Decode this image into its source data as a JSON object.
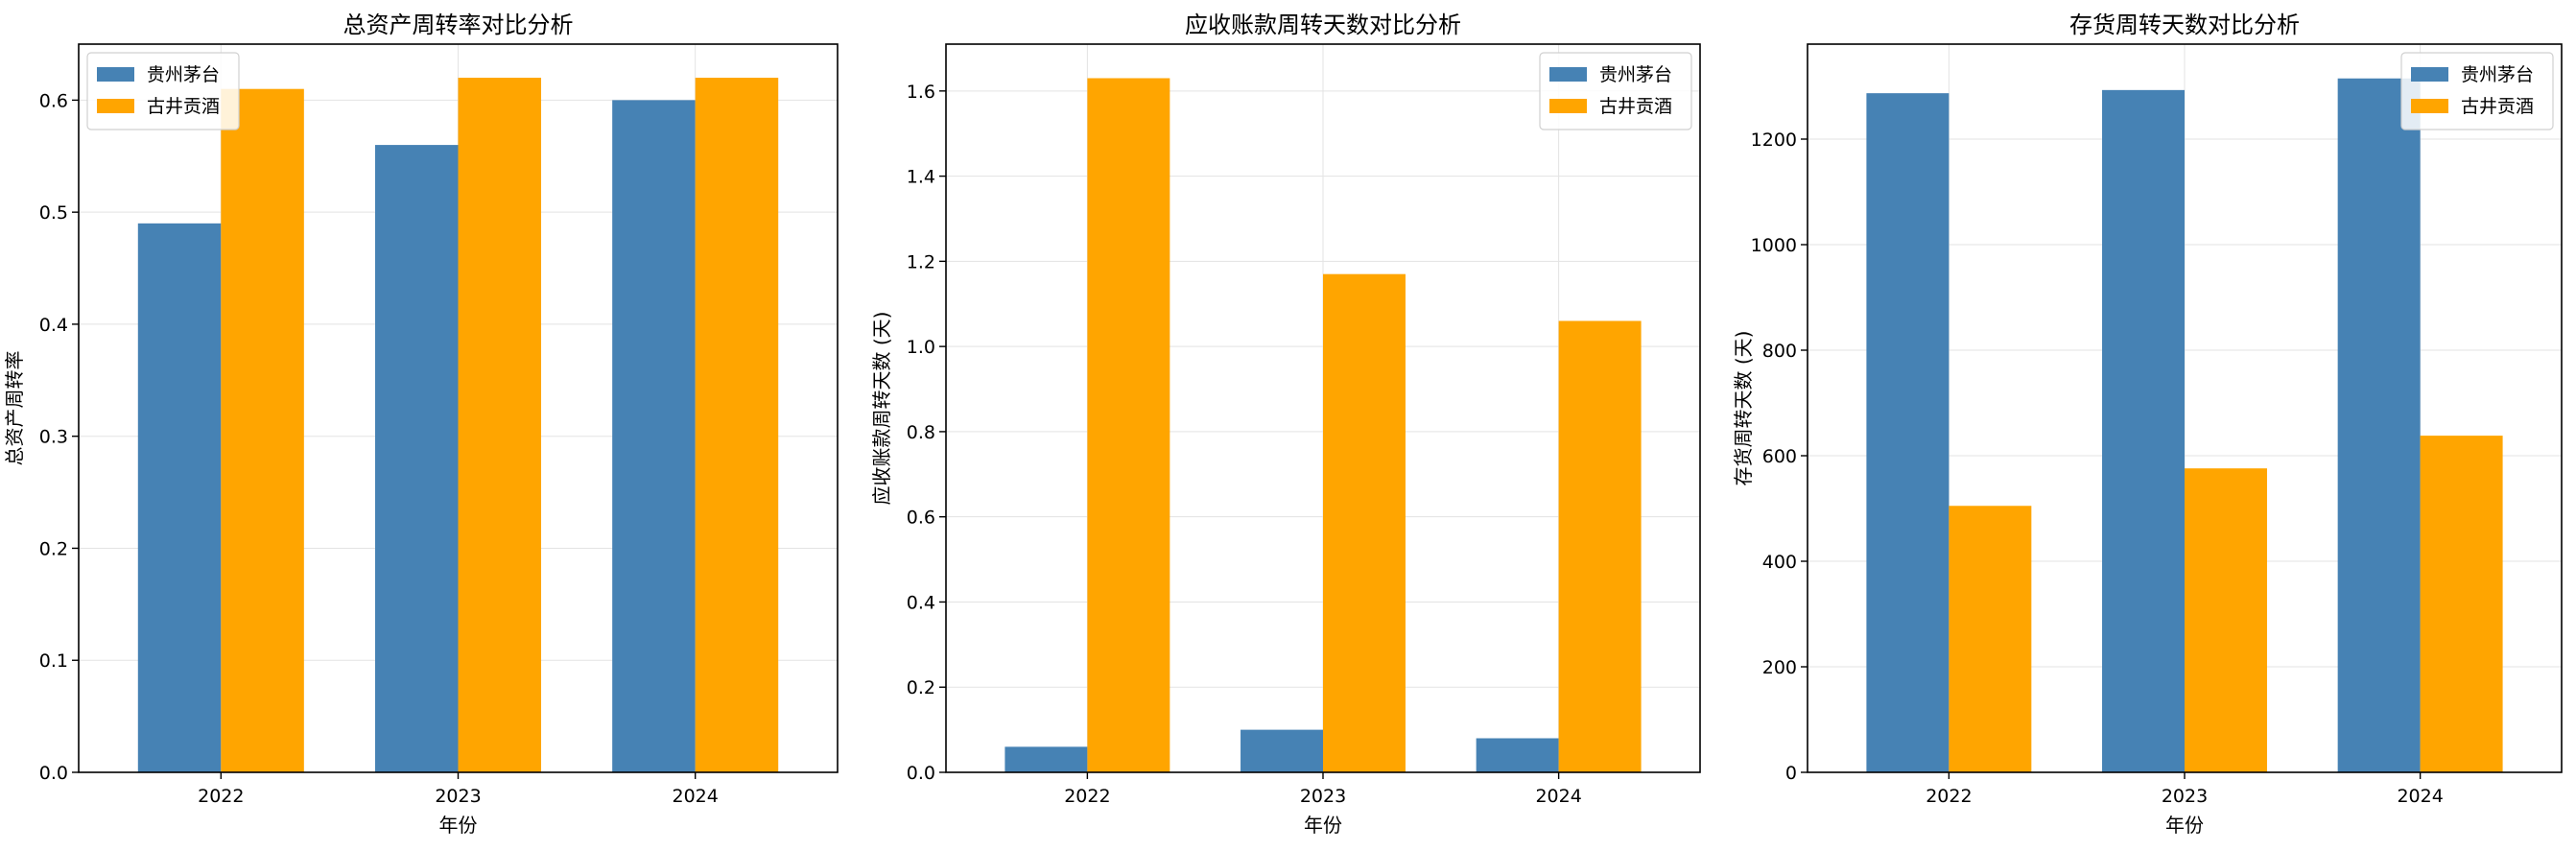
{
  "colors": {
    "series_1": "#4682B4",
    "series_2": "#FFA500",
    "grid": "#e3e3e3",
    "axis": "#000000"
  },
  "chart_data": [
    {
      "type": "bar",
      "title": "总资产周转率对比分析",
      "xlabel": "年份",
      "ylabel": "总资产周转率",
      "categories": [
        "2022",
        "2023",
        "2024"
      ],
      "series": [
        {
          "name": "贵州茅台",
          "values": [
            0.49,
            0.56,
            0.6
          ]
        },
        {
          "name": "古井贡酒",
          "values": [
            0.61,
            0.62,
            0.62
          ]
        }
      ],
      "ylim": [
        0,
        0.65
      ],
      "yticks": [
        0.0,
        0.1,
        0.2,
        0.3,
        0.4,
        0.5,
        0.6
      ],
      "ytick_labels": [
        "0.0",
        "0.1",
        "0.2",
        "0.3",
        "0.4",
        "0.5",
        "0.6"
      ],
      "grid": true,
      "legend_position": "top-left"
    },
    {
      "type": "bar",
      "title": "应收账款周转天数对比分析",
      "xlabel": "年份",
      "ylabel": "应收账款周转天数 (天)",
      "categories": [
        "2022",
        "2023",
        "2024"
      ],
      "series": [
        {
          "name": "贵州茅台",
          "values": [
            0.06,
            0.1,
            0.08
          ]
        },
        {
          "name": "古井贡酒",
          "values": [
            1.63,
            1.17,
            1.06
          ]
        }
      ],
      "ylim": [
        0,
        1.71
      ],
      "yticks": [
        0.0,
        0.2,
        0.4,
        0.6,
        0.8,
        1.0,
        1.2,
        1.4,
        1.6
      ],
      "ytick_labels": [
        "0.0",
        "0.2",
        "0.4",
        "0.6",
        "0.8",
        "1.0",
        "1.2",
        "1.4",
        "1.6"
      ],
      "grid": true,
      "legend_position": "top-right"
    },
    {
      "type": "bar",
      "title": "存货周转天数对比分析",
      "xlabel": "年份",
      "ylabel": "存货周转天数 (天)",
      "categories": [
        "2022",
        "2023",
        "2024"
      ],
      "series": [
        {
          "name": "贵州茅台",
          "values": [
            1287,
            1293,
            1315
          ]
        },
        {
          "name": "古井贡酒",
          "values": [
            505,
            576,
            638
          ]
        }
      ],
      "ylim": [
        0,
        1380
      ],
      "yticks": [
        0,
        200,
        400,
        600,
        800,
        1000,
        1200
      ],
      "ytick_labels": [
        "0",
        "200",
        "400",
        "600",
        "800",
        "1000",
        "1200"
      ],
      "grid": true,
      "legend_position": "top-right"
    }
  ]
}
